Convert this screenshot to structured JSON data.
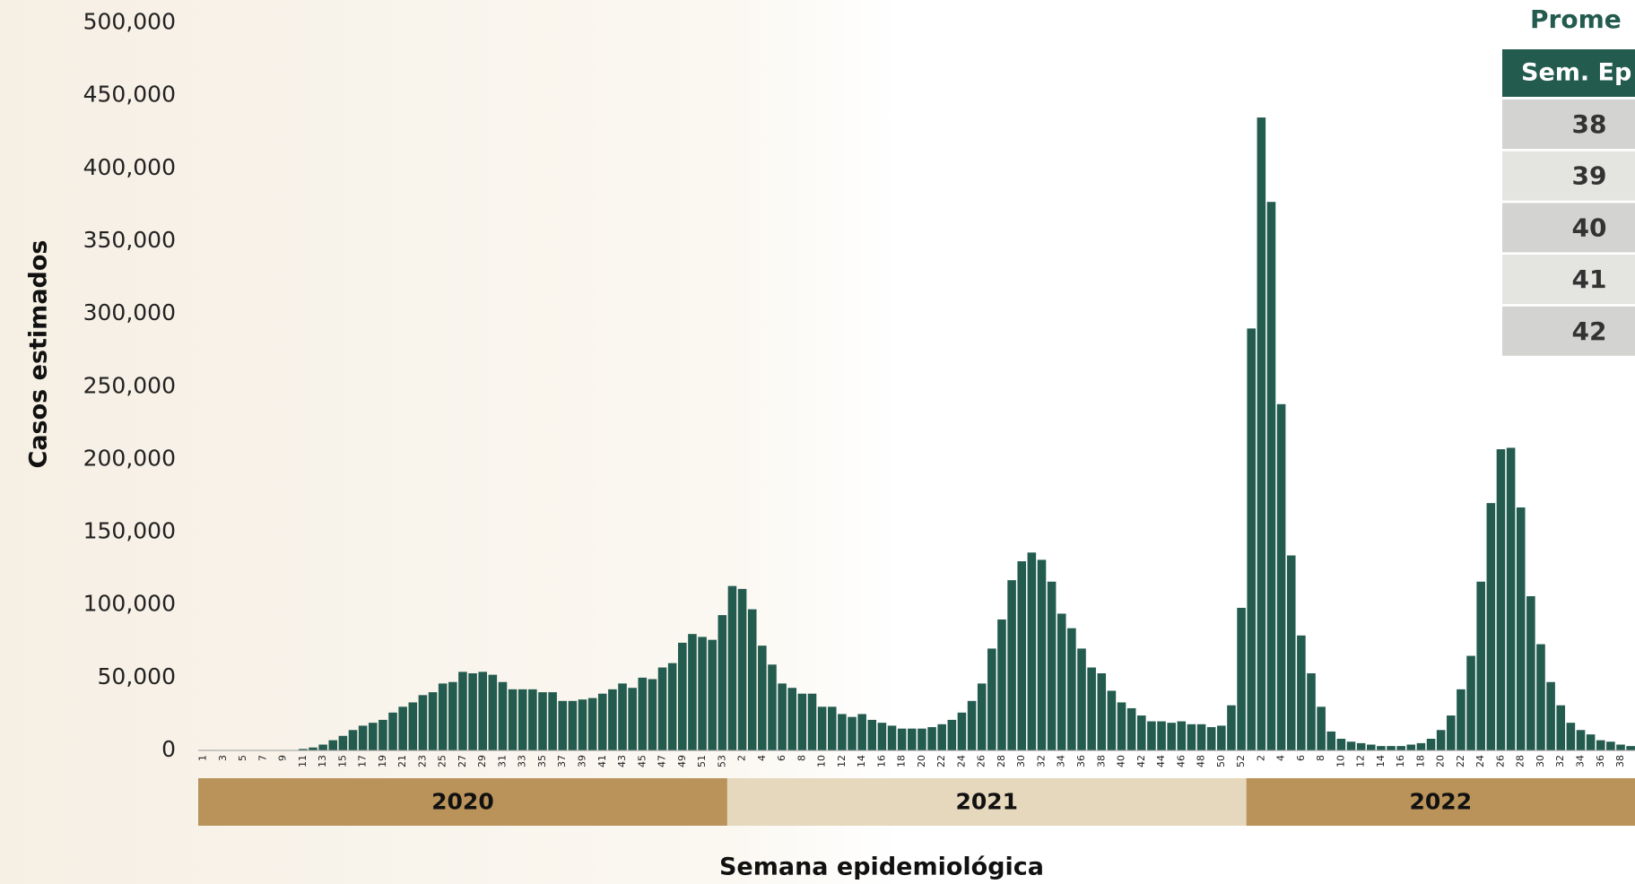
{
  "chart_data": {
    "type": "bar",
    "ylabel": "Casos estimados",
    "xlabel": "Semana epidemiológica",
    "color": "#235b4e",
    "ylim": [
      0,
      500000
    ],
    "yticks": [
      0,
      {
        "value": 50000,
        "label": "50,000"
      },
      {
        "value": 100000,
        "label": "100,000"
      },
      {
        "value": 150000,
        "label": "150,000"
      },
      {
        "value": 200000,
        "label": "200,000"
      },
      {
        "value": 250000,
        "label": "250,000"
      },
      {
        "value": 300000,
        "label": "300,000"
      },
      {
        "value": 350000,
        "label": "350,000"
      },
      {
        "value": 400000,
        "label": "400,000"
      },
      {
        "value": 450000,
        "label": "450,000"
      },
      {
        "value": 500000,
        "label": "500,000"
      }
    ],
    "groups": [
      {
        "name": "2020",
        "color": "#b9935a",
        "categories": [
          "1",
          null,
          "3",
          null,
          "5",
          null,
          "7",
          null,
          "9",
          null,
          "11",
          null,
          "13",
          null,
          "15",
          null,
          "17",
          null,
          "19",
          null,
          "21",
          null,
          "23",
          null,
          "25",
          null,
          "27",
          null,
          "29",
          null,
          "31",
          null,
          "33",
          null,
          "35",
          null,
          "37",
          null,
          "39",
          null,
          "41",
          null,
          "43",
          null,
          "45",
          null,
          "47",
          null,
          "49",
          null,
          "51",
          null,
          "53"
        ],
        "values": [
          0,
          0,
          0,
          0,
          0,
          0,
          0,
          0,
          0,
          0,
          1000,
          2000,
          4000,
          7000,
          10000,
          14000,
          17000,
          19000,
          21000,
          26000,
          30000,
          33000,
          38000,
          40000,
          46000,
          47000,
          54000,
          53000,
          54000,
          52000,
          47000,
          42000,
          42000,
          42000,
          40000,
          40000,
          34000,
          34000,
          35000,
          36000,
          39000,
          42000,
          46000,
          43000,
          50000,
          49000,
          57000,
          60000,
          74000,
          80000,
          78000,
          76000,
          93000
        ]
      },
      {
        "name": "2021",
        "color": "#e6d8bd",
        "categories": [
          null,
          "2",
          null,
          "4",
          null,
          "6",
          null,
          "8",
          null,
          "10",
          null,
          "12",
          null,
          "14",
          null,
          "16",
          null,
          "18",
          null,
          "20",
          null,
          "22",
          null,
          "24",
          null,
          "26",
          null,
          "28",
          null,
          "30",
          null,
          "32",
          null,
          "34",
          null,
          "36",
          null,
          "38",
          null,
          "40",
          null,
          "42",
          null,
          "44",
          null,
          "46",
          null,
          "48",
          null,
          "50",
          null,
          "52"
        ],
        "values": [
          113000,
          111000,
          97000,
          72000,
          59000,
          46000,
          43000,
          39000,
          39000,
          30000,
          30000,
          25000,
          23000,
          25000,
          21000,
          19000,
          17000,
          15000,
          15000,
          15000,
          16000,
          18000,
          21000,
          26000,
          34000,
          46000,
          70000,
          90000,
          117000,
          130000,
          136000,
          131000,
          116000,
          94000,
          84000,
          70000,
          57000,
          53000,
          41000,
          33000,
          29000,
          24000,
          20000,
          20000,
          19000,
          20000,
          18000,
          18000,
          16000,
          17000,
          31000,
          98000
        ]
      },
      {
        "name": "2022",
        "color": "#b9935a",
        "categories": [
          null,
          "2",
          null,
          "4",
          null,
          "6",
          null,
          "8",
          null,
          "10",
          null,
          "12",
          null,
          "14",
          null,
          "16",
          null,
          "18",
          null,
          "20",
          null,
          "22",
          null,
          "24",
          null,
          "26",
          null,
          "28",
          null,
          "30",
          null,
          "32",
          null,
          "34",
          null,
          "36",
          null,
          "38",
          null
        ],
        "values": [
          290000,
          435000,
          377000,
          238000,
          134000,
          79000,
          53000,
          30000,
          13000,
          8000,
          6000,
          5000,
          4000,
          3000,
          3000,
          3000,
          4000,
          5000,
          8000,
          14000,
          24000,
          42000,
          65000,
          116000,
          170000,
          207000,
          208000,
          167000,
          106000,
          73000,
          47000,
          31000,
          19000,
          14000,
          11000,
          7000,
          6000,
          4000,
          3000
        ]
      }
    ]
  },
  "table": {
    "title": "Prome",
    "header": "Sem. Ep",
    "rows": [
      "38",
      "39",
      "40",
      "41",
      "42"
    ]
  }
}
